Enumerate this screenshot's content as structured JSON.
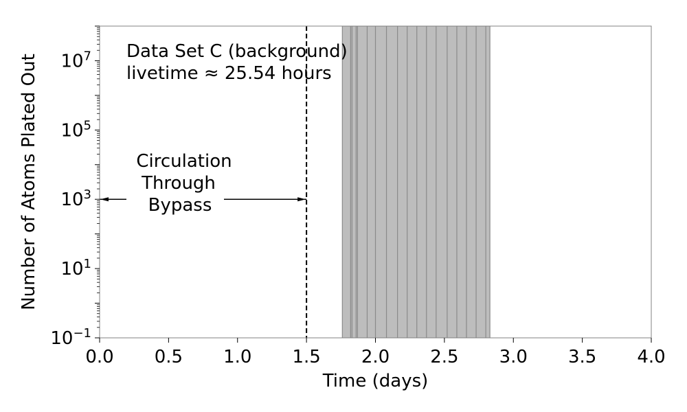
{
  "chart_data": {
    "type": "area",
    "xlabel": "Time (days)",
    "ylabel": "Number of Atoms Plated Out",
    "xlim": [
      0,
      4
    ],
    "ylim": [
      0.1,
      100000000
    ],
    "yscale": "log",
    "x_ticks": [
      {
        "value": 0.0,
        "label": "0.0"
      },
      {
        "value": 0.5,
        "label": "0.5"
      },
      {
        "value": 1.0,
        "label": "1.0"
      },
      {
        "value": 1.5,
        "label": "1.5"
      },
      {
        "value": 2.0,
        "label": "2.0"
      },
      {
        "value": 2.5,
        "label": "2.5"
      },
      {
        "value": 3.0,
        "label": "3.0"
      },
      {
        "value": 3.5,
        "label": "3.5"
      },
      {
        "value": 4.0,
        "label": "4.0"
      }
    ],
    "y_ticks": [
      {
        "value": 0.1,
        "base": "10",
        "exp": "−1"
      },
      {
        "value": 10,
        "base": "10",
        "exp": "1"
      },
      {
        "value": 1000,
        "base": "10",
        "exp": "3"
      },
      {
        "value": 100000,
        "base": "10",
        "exp": "5"
      },
      {
        "value": 10000000,
        "base": "10",
        "exp": "7"
      }
    ],
    "shaded_band": {
      "x_start": 1.76,
      "x_end": 2.83,
      "color": "#bdbdbd"
    },
    "band_lines": [
      1.76,
      1.82,
      1.83,
      1.86,
      1.87,
      1.94,
      2.0,
      2.08,
      2.16,
      2.23,
      2.3,
      2.37,
      2.44,
      2.52,
      2.59,
      2.66,
      2.73,
      2.8,
      2.83
    ],
    "grid": false
  },
  "annotations": {
    "title_line1": "Data Set C (background)",
    "title_line2": "livetime ≈ 25.54 hours",
    "circulation_line1": "Circulation",
    "circulation_line2": "Through",
    "circulation_line3": "Bypass",
    "vline_x": 1.5,
    "arrow_y": 1000,
    "arrow_x_start": 0.0,
    "arrow_x_end": 1.5
  }
}
